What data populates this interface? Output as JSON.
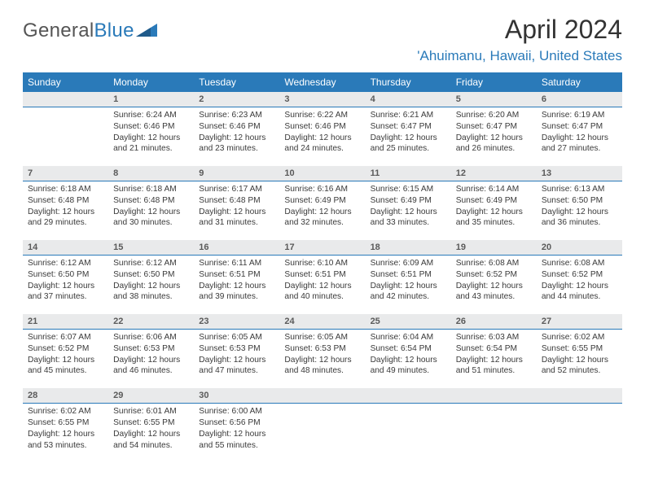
{
  "logo": {
    "word1": "General",
    "word2": "Blue"
  },
  "title": "April 2024",
  "location": "'Ahuimanu, Hawaii, United States",
  "dow": [
    "Sunday",
    "Monday",
    "Tuesday",
    "Wednesday",
    "Thursday",
    "Friday",
    "Saturday"
  ],
  "colors": {
    "header_bg": "#2a7ab9",
    "header_fg": "#ffffff",
    "daynum_bg": "#e9eaeb",
    "daynum_fg": "#5a5a5a",
    "text": "#3a3a3a",
    "location_fg": "#2a7ab9",
    "border": "#2a7ab9"
  },
  "weeks": [
    {
      "nums": [
        "",
        "1",
        "2",
        "3",
        "4",
        "5",
        "6"
      ],
      "cells": [
        null,
        {
          "sunrise": "Sunrise: 6:24 AM",
          "sunset": "Sunset: 6:46 PM",
          "day1": "Daylight: 12 hours",
          "day2": "and 21 minutes."
        },
        {
          "sunrise": "Sunrise: 6:23 AM",
          "sunset": "Sunset: 6:46 PM",
          "day1": "Daylight: 12 hours",
          "day2": "and 23 minutes."
        },
        {
          "sunrise": "Sunrise: 6:22 AM",
          "sunset": "Sunset: 6:46 PM",
          "day1": "Daylight: 12 hours",
          "day2": "and 24 minutes."
        },
        {
          "sunrise": "Sunrise: 6:21 AM",
          "sunset": "Sunset: 6:47 PM",
          "day1": "Daylight: 12 hours",
          "day2": "and 25 minutes."
        },
        {
          "sunrise": "Sunrise: 6:20 AM",
          "sunset": "Sunset: 6:47 PM",
          "day1": "Daylight: 12 hours",
          "day2": "and 26 minutes."
        },
        {
          "sunrise": "Sunrise: 6:19 AM",
          "sunset": "Sunset: 6:47 PM",
          "day1": "Daylight: 12 hours",
          "day2": "and 27 minutes."
        }
      ]
    },
    {
      "nums": [
        "7",
        "8",
        "9",
        "10",
        "11",
        "12",
        "13"
      ],
      "cells": [
        {
          "sunrise": "Sunrise: 6:18 AM",
          "sunset": "Sunset: 6:48 PM",
          "day1": "Daylight: 12 hours",
          "day2": "and 29 minutes."
        },
        {
          "sunrise": "Sunrise: 6:18 AM",
          "sunset": "Sunset: 6:48 PM",
          "day1": "Daylight: 12 hours",
          "day2": "and 30 minutes."
        },
        {
          "sunrise": "Sunrise: 6:17 AM",
          "sunset": "Sunset: 6:48 PM",
          "day1": "Daylight: 12 hours",
          "day2": "and 31 minutes."
        },
        {
          "sunrise": "Sunrise: 6:16 AM",
          "sunset": "Sunset: 6:49 PM",
          "day1": "Daylight: 12 hours",
          "day2": "and 32 minutes."
        },
        {
          "sunrise": "Sunrise: 6:15 AM",
          "sunset": "Sunset: 6:49 PM",
          "day1": "Daylight: 12 hours",
          "day2": "and 33 minutes."
        },
        {
          "sunrise": "Sunrise: 6:14 AM",
          "sunset": "Sunset: 6:49 PM",
          "day1": "Daylight: 12 hours",
          "day2": "and 35 minutes."
        },
        {
          "sunrise": "Sunrise: 6:13 AM",
          "sunset": "Sunset: 6:50 PM",
          "day1": "Daylight: 12 hours",
          "day2": "and 36 minutes."
        }
      ]
    },
    {
      "nums": [
        "14",
        "15",
        "16",
        "17",
        "18",
        "19",
        "20"
      ],
      "cells": [
        {
          "sunrise": "Sunrise: 6:12 AM",
          "sunset": "Sunset: 6:50 PM",
          "day1": "Daylight: 12 hours",
          "day2": "and 37 minutes."
        },
        {
          "sunrise": "Sunrise: 6:12 AM",
          "sunset": "Sunset: 6:50 PM",
          "day1": "Daylight: 12 hours",
          "day2": "and 38 minutes."
        },
        {
          "sunrise": "Sunrise: 6:11 AM",
          "sunset": "Sunset: 6:51 PM",
          "day1": "Daylight: 12 hours",
          "day2": "and 39 minutes."
        },
        {
          "sunrise": "Sunrise: 6:10 AM",
          "sunset": "Sunset: 6:51 PM",
          "day1": "Daylight: 12 hours",
          "day2": "and 40 minutes."
        },
        {
          "sunrise": "Sunrise: 6:09 AM",
          "sunset": "Sunset: 6:51 PM",
          "day1": "Daylight: 12 hours",
          "day2": "and 42 minutes."
        },
        {
          "sunrise": "Sunrise: 6:08 AM",
          "sunset": "Sunset: 6:52 PM",
          "day1": "Daylight: 12 hours",
          "day2": "and 43 minutes."
        },
        {
          "sunrise": "Sunrise: 6:08 AM",
          "sunset": "Sunset: 6:52 PM",
          "day1": "Daylight: 12 hours",
          "day2": "and 44 minutes."
        }
      ]
    },
    {
      "nums": [
        "21",
        "22",
        "23",
        "24",
        "25",
        "26",
        "27"
      ],
      "cells": [
        {
          "sunrise": "Sunrise: 6:07 AM",
          "sunset": "Sunset: 6:52 PM",
          "day1": "Daylight: 12 hours",
          "day2": "and 45 minutes."
        },
        {
          "sunrise": "Sunrise: 6:06 AM",
          "sunset": "Sunset: 6:53 PM",
          "day1": "Daylight: 12 hours",
          "day2": "and 46 minutes."
        },
        {
          "sunrise": "Sunrise: 6:05 AM",
          "sunset": "Sunset: 6:53 PM",
          "day1": "Daylight: 12 hours",
          "day2": "and 47 minutes."
        },
        {
          "sunrise": "Sunrise: 6:05 AM",
          "sunset": "Sunset: 6:53 PM",
          "day1": "Daylight: 12 hours",
          "day2": "and 48 minutes."
        },
        {
          "sunrise": "Sunrise: 6:04 AM",
          "sunset": "Sunset: 6:54 PM",
          "day1": "Daylight: 12 hours",
          "day2": "and 49 minutes."
        },
        {
          "sunrise": "Sunrise: 6:03 AM",
          "sunset": "Sunset: 6:54 PM",
          "day1": "Daylight: 12 hours",
          "day2": "and 51 minutes."
        },
        {
          "sunrise": "Sunrise: 6:02 AM",
          "sunset": "Sunset: 6:55 PM",
          "day1": "Daylight: 12 hours",
          "day2": "and 52 minutes."
        }
      ]
    },
    {
      "nums": [
        "28",
        "29",
        "30",
        "",
        "",
        "",
        ""
      ],
      "cells": [
        {
          "sunrise": "Sunrise: 6:02 AM",
          "sunset": "Sunset: 6:55 PM",
          "day1": "Daylight: 12 hours",
          "day2": "and 53 minutes."
        },
        {
          "sunrise": "Sunrise: 6:01 AM",
          "sunset": "Sunset: 6:55 PM",
          "day1": "Daylight: 12 hours",
          "day2": "and 54 minutes."
        },
        {
          "sunrise": "Sunrise: 6:00 AM",
          "sunset": "Sunset: 6:56 PM",
          "day1": "Daylight: 12 hours",
          "day2": "and 55 minutes."
        },
        null,
        null,
        null,
        null
      ]
    }
  ]
}
